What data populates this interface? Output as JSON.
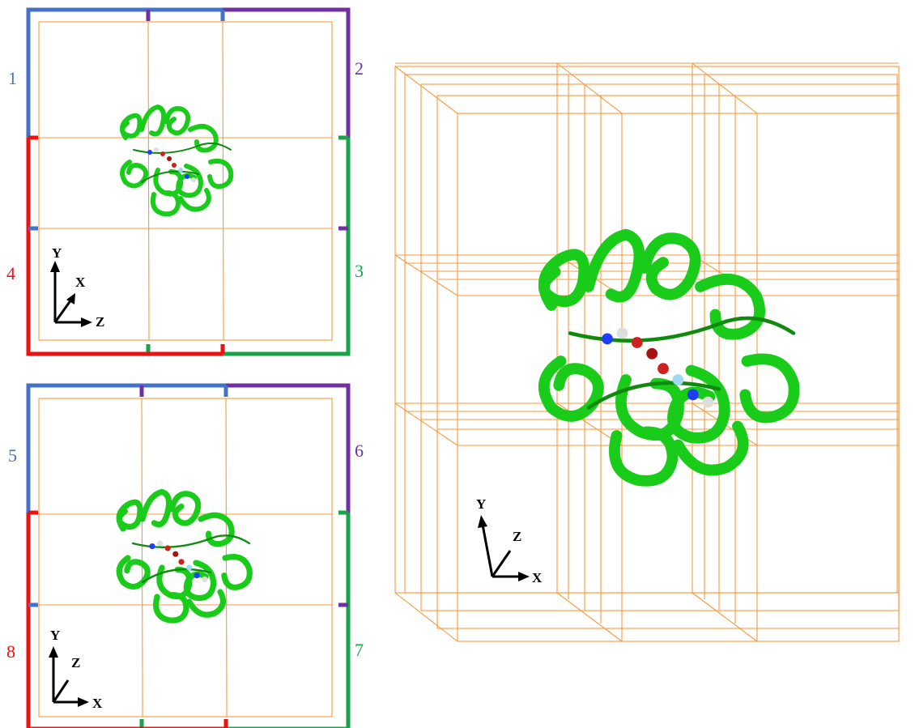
{
  "colors": {
    "blue": "#4472C4",
    "purple": "#7030A0",
    "green": "#16A34A",
    "red": "#EF1010",
    "grid": "#F59A3C",
    "protein": "#1ACC1A"
  },
  "top_panel": {
    "labels": {
      "l1": "1",
      "l2": "2",
      "l3": "3",
      "l4": "4"
    },
    "axes": {
      "y": "Y",
      "x": "X",
      "z": "Z"
    }
  },
  "bottom_panel": {
    "labels": {
      "l5": "5",
      "l6": "6",
      "l7": "7",
      "l8": "8"
    },
    "axes": {
      "y": "Y",
      "z": "Z",
      "x": "X"
    }
  },
  "right_panel": {
    "axes": {
      "y": "Y",
      "z": "Z",
      "x": "X"
    }
  }
}
